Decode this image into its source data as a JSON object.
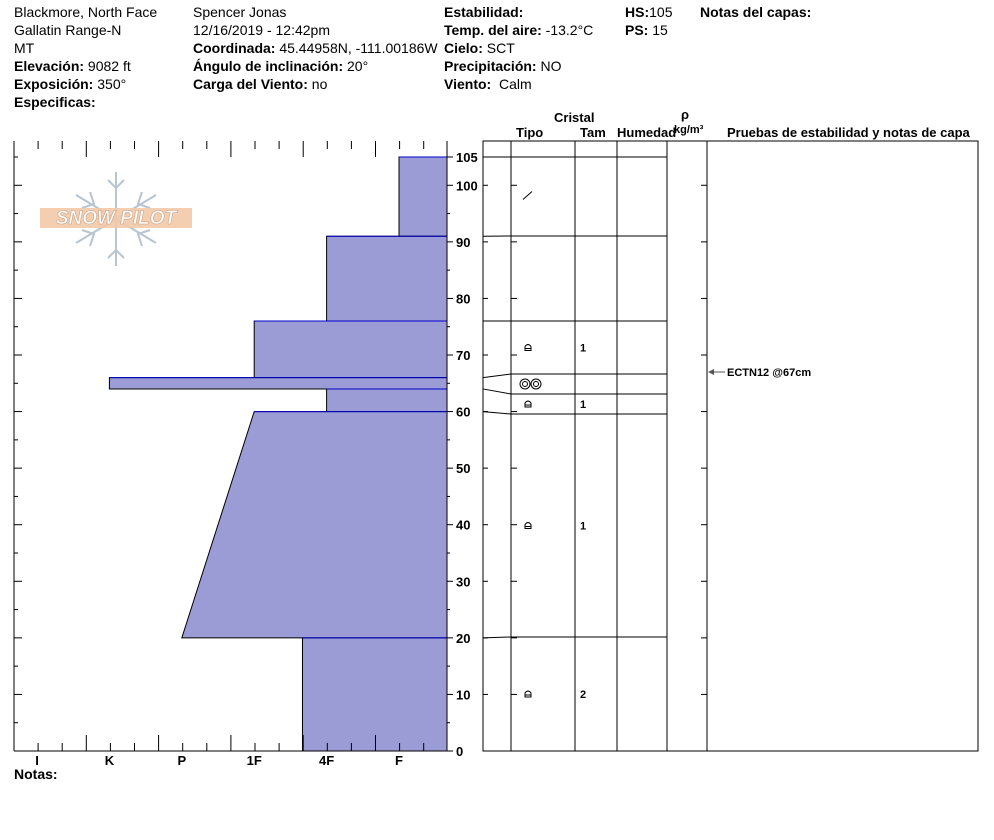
{
  "header": {
    "location": "Blackmore, North Face",
    "range": "Gallatin Range-N",
    "state": "MT",
    "elevation_label": "Elevación:",
    "elevation": "9082 ft",
    "aspect_label": "Exposición:",
    "aspect": "350°",
    "specifics_label": "Especificas:",
    "observer": "Spencer Jonas",
    "datetime": "12/16/2019 - 12:42pm",
    "coord_label": "Coordinada:",
    "coord": "45.44958N, -111.00186W",
    "slope_label": "Ángulo de inclinación:",
    "slope": "20°",
    "wind_load_label": "Carga del Viento:",
    "wind_load": "no",
    "stability_label": "Estabilidad:",
    "air_temp_label": "Temp. del aire:",
    "air_temp": "-13.2°C",
    "sky_label": "Cielo:",
    "sky": "SCT",
    "precip_label": "Precipitación:",
    "precip": "NO",
    "wind_label": "Viento:",
    "wind": "Calm",
    "hs_label": "HS:",
    "hs": "105",
    "ps_label": "PS:",
    "ps": "15",
    "layer_notes_label": "Notas del capas:"
  },
  "logo_text": "SNOW PILOT",
  "notes_label": "Notas:",
  "table_headers": {
    "crystal": "Cristal",
    "type": "Tipo",
    "size": "Tam",
    "moisture": "Humedad",
    "density_rho": "ρ",
    "density_unit": "kg/m³",
    "tests": "Pruebas de estabilidad y notas de capa"
  },
  "colors": {
    "hardness_fill": "#9b9bd6",
    "hardness_stroke": "#0000cc"
  },
  "chart_data": {
    "type": "area",
    "title": "",
    "xlabel": "",
    "ylabel": "",
    "hardness_ticks": [
      "I",
      "K",
      "P",
      "1F",
      "4F",
      "F"
    ],
    "y_ticks": [
      0,
      10,
      20,
      30,
      40,
      50,
      60,
      70,
      80,
      90,
      100,
      105
    ],
    "ylim": [
      0,
      105
    ],
    "layers": [
      {
        "top": 105,
        "bottom": 91,
        "hardness_top": "F",
        "hardness_bottom": "F",
        "grain": "decomposing-fragments",
        "size": ""
      },
      {
        "top": 91,
        "bottom": 76,
        "hardness_top": "4F",
        "hardness_bottom": "4F",
        "grain": "",
        "size": ""
      },
      {
        "top": 76,
        "bottom": 66,
        "hardness_top": "1F",
        "hardness_bottom": "1F",
        "grain": "rounding-faceted",
        "size": "1"
      },
      {
        "top": 66,
        "bottom": 64,
        "hardness_top": "K",
        "hardness_bottom": "K",
        "grain": "melt-clusters",
        "size": ""
      },
      {
        "top": 64,
        "bottom": 60,
        "hardness_top": "4F",
        "hardness_bottom": "4F",
        "grain": "rounding-faceted",
        "size": "1"
      },
      {
        "top": 60,
        "bottom": 20,
        "hardness_top": "1F",
        "hardness_bottom": "P",
        "grain": "rounding-faceted",
        "size": "1"
      },
      {
        "top": 20,
        "bottom": 0,
        "hardness_top": "4F-",
        "hardness_bottom": "4F-",
        "grain": "rounding-faceted",
        "size": "2"
      }
    ],
    "tests": [
      {
        "label": "ECTN12 @67cm",
        "depth": 67
      }
    ]
  }
}
